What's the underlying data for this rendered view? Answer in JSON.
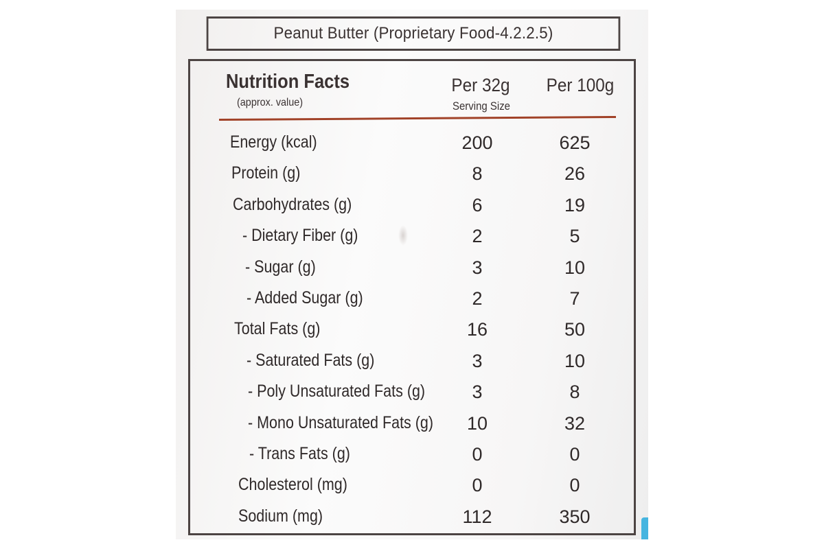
{
  "label": {
    "product_title": "Peanut Butter (Proprietary Food-4.2.2.5)",
    "header": {
      "title": "Nutrition Facts",
      "subtitle": "(approx. value)",
      "col1": "Per 32g",
      "col1_sub": "Serving Size",
      "col2": "Per 100g"
    },
    "rows": [
      {
        "label": "Energy (kcal)",
        "per_serving": "200",
        "per_100g": "625"
      },
      {
        "label": "Protein (g)",
        "per_serving": "8",
        "per_100g": "26"
      },
      {
        "label": "Carbohydrates (g)",
        "per_serving": "6",
        "per_100g": "19"
      },
      {
        "label": "- Dietary Fiber (g)",
        "per_serving": "2",
        "per_100g": "5"
      },
      {
        "label": "- Sugar (g)",
        "per_serving": "3",
        "per_100g": "10"
      },
      {
        "label": "- Added Sugar (g)",
        "per_serving": "2",
        "per_100g": "7"
      },
      {
        "label": "Total Fats (g)",
        "per_serving": "16",
        "per_100g": "50"
      },
      {
        "label": "- Saturated Fats (g)",
        "per_serving": "3",
        "per_100g": "10"
      },
      {
        "label": "- Poly Unsaturated Fats (g)",
        "per_serving": "3",
        "per_100g": "8"
      },
      {
        "label": "- Mono Unsaturated Fats (g)",
        "per_serving": "10",
        "per_100g": "32"
      },
      {
        "label": "- Trans Fats (g)",
        "per_serving": "0",
        "per_100g": "0"
      },
      {
        "label": "Cholesterol (mg)",
        "per_serving": "0",
        "per_100g": "0"
      },
      {
        "label": "Sodium (mg)",
        "per_serving": "112",
        "per_100g": "350"
      }
    ]
  },
  "colors": {
    "text": "#3a3232",
    "border": "#4c4443",
    "rule": "#a14228",
    "accent_edge": "#46b5e0"
  }
}
